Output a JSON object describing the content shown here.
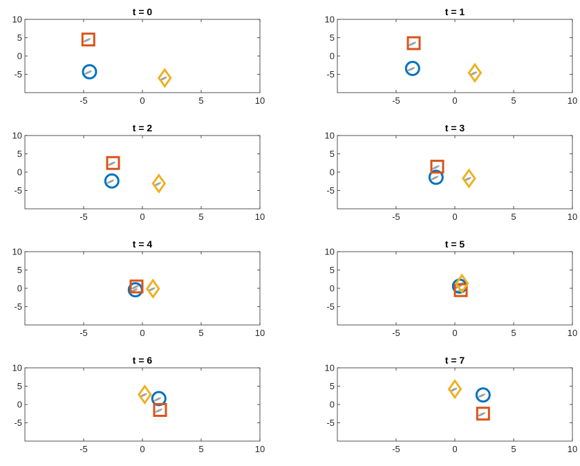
{
  "chart_data": {
    "type": "scatter",
    "xlim": [
      -10,
      10
    ],
    "ylim": [
      -10,
      10
    ],
    "xticks": [
      -5,
      0,
      5,
      10
    ],
    "yticks": [
      10,
      5,
      0,
      -5
    ],
    "xtick_labels": [
      "-5",
      "0",
      "5",
      "10"
    ],
    "ytick_labels": [
      "10",
      "5",
      "0",
      "-5"
    ],
    "grid": false,
    "markers": {
      "circle": {
        "shape": "circle",
        "color": "#0072bd"
      },
      "square": {
        "shape": "square",
        "color": "#d95319"
      },
      "diamond": {
        "shape": "diamond",
        "color": "#edb120"
      }
    },
    "panels": [
      {
        "title": "t = 0",
        "points": {
          "circle": [
            -4.5,
            -4.3
          ],
          "square": [
            -4.6,
            4.5
          ],
          "diamond": [
            1.9,
            -6.0
          ]
        }
      },
      {
        "title": "t = 1",
        "points": {
          "circle": [
            -3.6,
            -3.4
          ],
          "square": [
            -3.5,
            3.5
          ],
          "diamond": [
            1.7,
            -4.6
          ]
        }
      },
      {
        "title": "t = 2",
        "points": {
          "circle": [
            -2.6,
            -2.4
          ],
          "square": [
            -2.5,
            2.5
          ],
          "diamond": [
            1.4,
            -3.1
          ]
        }
      },
      {
        "title": "t = 3",
        "points": {
          "circle": [
            -1.6,
            -1.4
          ],
          "square": [
            -1.5,
            1.5
          ],
          "diamond": [
            1.2,
            -1.7
          ]
        }
      },
      {
        "title": "t = 4",
        "points": {
          "circle": [
            -0.6,
            -0.4
          ],
          "square": [
            -0.5,
            0.5
          ],
          "diamond": [
            0.9,
            -0.1
          ]
        }
      },
      {
        "title": "t = 5",
        "points": {
          "circle": [
            0.4,
            0.6
          ],
          "square": [
            0.5,
            -0.5
          ],
          "diamond": [
            0.6,
            1.3
          ]
        }
      },
      {
        "title": "t = 6",
        "points": {
          "circle": [
            1.4,
            1.6
          ],
          "square": [
            1.5,
            -1.5
          ],
          "diamond": [
            0.2,
            2.7
          ]
        }
      },
      {
        "title": "t = 7",
        "points": {
          "circle": [
            2.4,
            2.6
          ],
          "square": [
            2.4,
            -2.5
          ],
          "diamond": [
            0.0,
            4.2
          ]
        }
      }
    ]
  }
}
